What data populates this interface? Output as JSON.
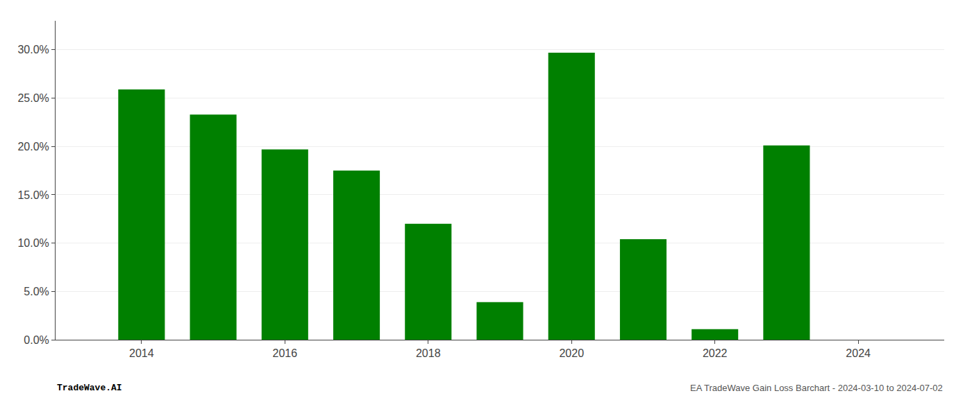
{
  "chart_data": {
    "type": "bar",
    "x": [
      2014,
      2015,
      2016,
      2017,
      2018,
      2019,
      2020,
      2021,
      2022,
      2023,
      2024
    ],
    "values": [
      0.259,
      0.233,
      0.197,
      0.175,
      0.12,
      0.039,
      0.297,
      0.104,
      0.011,
      0.201,
      null
    ],
    "color": "#008000",
    "xlim": [
      2012.8,
      2025.2
    ],
    "xticks": [
      2014,
      2016,
      2018,
      2020,
      2022,
      2024
    ],
    "ylim": [
      0,
      0.33
    ],
    "yticks": [
      {
        "value": 0.0,
        "label": "0.0%"
      },
      {
        "value": 0.05,
        "label": "5.0%"
      },
      {
        "value": 0.1,
        "label": "10.0%"
      },
      {
        "value": 0.15,
        "label": "15.0%"
      },
      {
        "value": 0.2,
        "label": "20.0%"
      },
      {
        "value": 0.25,
        "label": "25.0%"
      },
      {
        "value": 0.3,
        "label": "30.0%"
      }
    ],
    "grid": true,
    "annotations": [
      "TradeWave.AI",
      "EA TradeWave Gain Loss Barchart - 2024-03-10 to 2024-07-02"
    ]
  }
}
